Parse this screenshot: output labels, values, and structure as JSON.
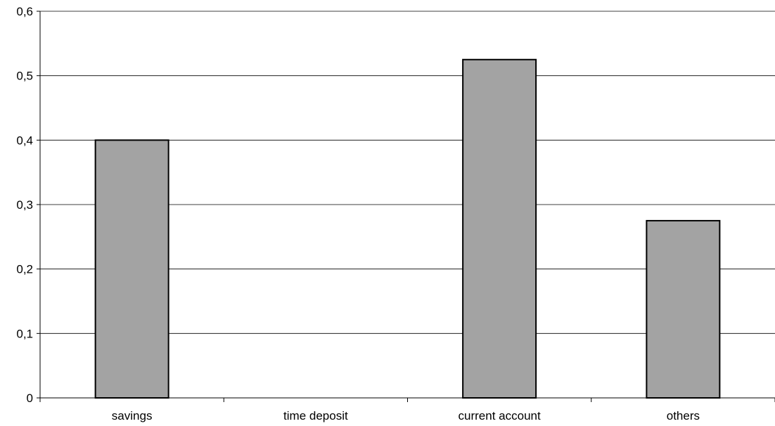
{
  "chart_data": {
    "type": "bar",
    "categories": [
      "savings",
      "time deposit",
      "current account",
      "others"
    ],
    "values": [
      0.4,
      0,
      0.525,
      0.275
    ],
    "y_ticks": [
      "0",
      "0,1",
      "0,2",
      "0,3",
      "0,4",
      "0,5",
      "0,6"
    ],
    "ylim": [
      0,
      0.6
    ],
    "grid": true,
    "legend": "none",
    "colors": {
      "bar": "#a3a3a3",
      "bar_border": "#000000",
      "grid": "#000000",
      "background": "#ffffff"
    }
  }
}
